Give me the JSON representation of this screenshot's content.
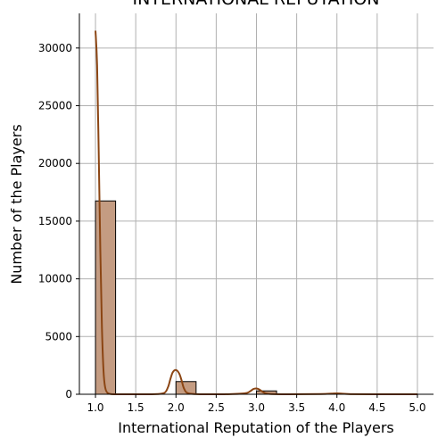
{
  "chart_data": {
    "type": "bar",
    "title": "INTERNATIONAL REPUTATION",
    "xlabel": "International Reputation of the Players",
    "ylabel": "Number of the Players",
    "xlim": [
      0.8,
      5.2
    ],
    "ylim": [
      0,
      33000
    ],
    "xticks": [
      1.0,
      1.5,
      2.0,
      2.5,
      3.0,
      3.5,
      4.0,
      4.5,
      5.0
    ],
    "xtick_labels": [
      "1.0",
      "1.5",
      "2.0",
      "2.5",
      "3.0",
      "3.5",
      "4.0",
      "4.5",
      "5.0"
    ],
    "yticks": [
      0,
      5000,
      10000,
      15000,
      20000,
      25000,
      30000
    ],
    "ytick_labels": [
      "0",
      "5000",
      "10000",
      "15000",
      "20000",
      "25000",
      "30000"
    ],
    "grid": true,
    "bar_width": 0.25,
    "bars": [
      {
        "x_start": 1.0,
        "x_end": 1.25,
        "value": 16750
      },
      {
        "x_start": 1.25,
        "x_end": 1.5,
        "value": 0
      },
      {
        "x_start": 1.5,
        "x_end": 1.75,
        "value": 0
      },
      {
        "x_start": 1.75,
        "x_end": 2.0,
        "value": 0
      },
      {
        "x_start": 2.0,
        "x_end": 2.25,
        "value": 1100
      },
      {
        "x_start": 2.25,
        "x_end": 2.5,
        "value": 0
      },
      {
        "x_start": 2.5,
        "x_end": 2.75,
        "value": 0
      },
      {
        "x_start": 2.75,
        "x_end": 3.0,
        "value": 0
      },
      {
        "x_start": 3.0,
        "x_end": 3.25,
        "value": 290
      },
      {
        "x_start": 3.25,
        "x_end": 3.5,
        "value": 0
      },
      {
        "x_start": 3.5,
        "x_end": 3.75,
        "value": 0
      },
      {
        "x_start": 3.75,
        "x_end": 4.0,
        "value": 0
      },
      {
        "x_start": 4.0,
        "x_end": 4.25,
        "value": 40
      },
      {
        "x_start": 4.25,
        "x_end": 4.5,
        "value": 0
      },
      {
        "x_start": 4.5,
        "x_end": 4.75,
        "value": 0
      },
      {
        "x_start": 4.75,
        "x_end": 5.0,
        "value": 6
      }
    ],
    "kde": {
      "x": [
        1.0,
        1.02,
        1.04,
        1.06,
        1.08,
        1.1,
        1.12,
        1.15,
        1.2,
        1.3,
        1.5,
        1.7,
        1.85,
        1.9,
        1.93,
        1.96,
        2.0,
        2.04,
        2.07,
        2.1,
        2.15,
        2.3,
        2.6,
        2.85,
        2.92,
        2.96,
        3.0,
        3.04,
        3.08,
        3.15,
        3.4,
        3.8,
        3.93,
        4.0,
        4.07,
        4.2,
        4.6,
        5.0
      ],
      "y": [
        31500,
        28500,
        21000,
        12500,
        5800,
        2000,
        600,
        120,
        10,
        0,
        0,
        0,
        100,
        600,
        1300,
        1900,
        2100,
        1800,
        1200,
        500,
        90,
        0,
        0,
        80,
        250,
        450,
        500,
        400,
        200,
        40,
        0,
        20,
        60,
        80,
        50,
        10,
        0,
        0
      ]
    },
    "colors": {
      "bar_fill": "#c49c82",
      "bar_edge": "#000000",
      "kde_line": "#8b4513",
      "grid": "#b0b0b0",
      "axis": "#000000"
    }
  }
}
